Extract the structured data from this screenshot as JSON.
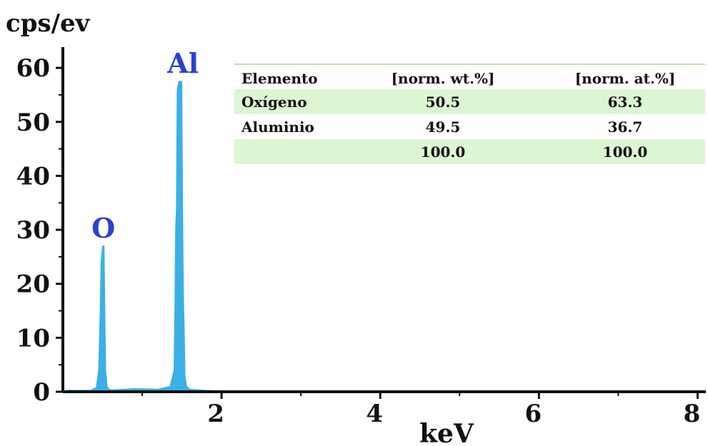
{
  "chart_data": {
    "type": "line",
    "ylabel": "cps/ev",
    "xlabel": "keV",
    "xlim": [
      0,
      8.05
    ],
    "ylim": [
      0,
      62
    ],
    "xticks": [
      2,
      4,
      6,
      8
    ],
    "yticks": [
      0,
      10,
      20,
      30,
      40,
      50,
      60
    ],
    "grid": false,
    "series_color": "#3bb0e6",
    "label_color": "#2a3fd6",
    "series": [
      {
        "x": [
          0.05,
          0.35,
          0.42,
          0.45,
          0.47,
          0.48,
          0.5,
          0.51,
          0.52,
          0.53,
          0.54,
          0.55,
          0.56,
          0.58,
          0.6,
          0.65,
          0.9,
          1.2,
          1.35,
          1.4,
          1.41,
          1.42,
          1.43,
          1.44,
          1.46,
          1.48,
          1.5,
          1.51,
          1.52,
          1.53,
          1.54,
          1.56,
          1.6,
          1.8,
          2.0,
          4.0,
          6.0,
          8.05
        ],
        "y": [
          0.3,
          0.3,
          0.8,
          4,
          15,
          24,
          27,
          27,
          27,
          15,
          4,
          2.5,
          1,
          0.5,
          0.4,
          0.4,
          0.6,
          0.5,
          1,
          4,
          15,
          30,
          34,
          56,
          57.5,
          57.5,
          57.5,
          34,
          18,
          12,
          3,
          1,
          0.5,
          0.3,
          0.2,
          0.1,
          0.1,
          0.1
        ]
      }
    ],
    "annotations": [
      {
        "text": "O",
        "x": 0.51,
        "y": 27
      },
      {
        "text": "Al",
        "x": 1.47,
        "y": 57.5
      }
    ],
    "table": {
      "headers": [
        "Elemento",
        "[norm. wt.%]",
        "[norm. at.%]"
      ],
      "rows": [
        [
          "Oxígeno",
          "50.5",
          "63.3"
        ],
        [
          "Aluminio",
          "49.5",
          "36.7"
        ],
        [
          "",
          "100.0",
          "100.0"
        ]
      ],
      "stripe_color": "#dcf5d2",
      "border_color": "#a8d99a"
    }
  }
}
